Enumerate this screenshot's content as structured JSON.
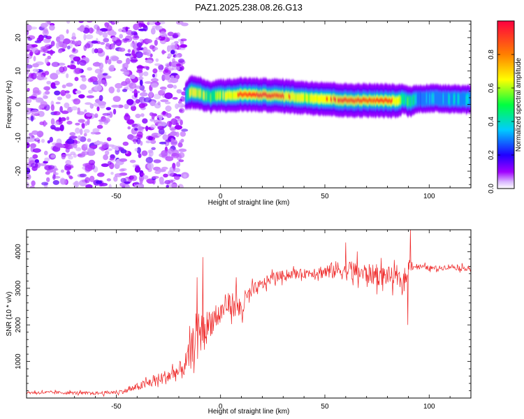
{
  "figure_title": "PAZ1.2025.238.08.26.G13",
  "chart_data": [
    {
      "type": "heatmap",
      "title": "PAZ1.2025.238.08.26.G13",
      "xlabel": "Height of straight line (km)",
      "ylabel": "Frequency (Hz)",
      "xlim": [
        -93,
        120
      ],
      "ylim": [
        -25,
        25
      ],
      "x_ticks": [
        -50,
        0,
        50,
        100
      ],
      "y_ticks": [
        -20,
        -10,
        0,
        10,
        20
      ],
      "x_tick_labels": [
        "-50",
        "0",
        "50",
        "100"
      ],
      "y_tick_labels": [
        "-20",
        "-10",
        "0",
        "10",
        "20"
      ],
      "noise_region_x": [
        -93,
        -17
      ],
      "signal_ridge": {
        "x": [
          -17,
          -14,
          -10,
          -5,
          0,
          5,
          10,
          20,
          30,
          40,
          50,
          60,
          70,
          80,
          85,
          88,
          90,
          95,
          100,
          110,
          120
        ],
        "frequency": [
          2.5,
          3.8,
          3.2,
          2.2,
          2.8,
          2.6,
          3.0,
          2.8,
          2.5,
          2.0,
          1.7,
          1.2,
          1.2,
          1.1,
          1.0,
          1.8,
          0.8,
          1.7,
          1.8,
          1.7,
          1.5
        ],
        "amplitude": [
          0.3,
          0.7,
          0.6,
          0.5,
          0.6,
          0.6,
          0.9,
          1.0,
          0.9,
          0.6,
          0.8,
          1.0,
          0.95,
          1.0,
          0.6,
          0.4,
          0.5,
          0.3,
          0.35,
          0.35,
          0.35
        ]
      },
      "colorbar": {
        "label": "Normalized spectral amplitude",
        "range": [
          0,
          1
        ],
        "ticks": [
          "0.0",
          "0.2",
          "0.4",
          "0.6",
          "0.8"
        ],
        "colors": [
          "#ffffff",
          "#a000ff",
          "#2000ff",
          "#00ccff",
          "#00ff40",
          "#ffff00",
          "#ff8000",
          "#ff0040"
        ]
      }
    },
    {
      "type": "line",
      "xlabel": "Height of straight line (km)",
      "ylabel": "SNR (10 * v/v)",
      "xlim": [
        -93,
        120
      ],
      "ylim": [
        0,
        4600
      ],
      "x_ticks": [
        -50,
        0,
        50,
        100
      ],
      "y_ticks": [
        1000,
        2000,
        3000,
        4000
      ],
      "x_tick_labels": [
        "-50",
        "0",
        "50",
        "100"
      ],
      "y_tick_labels": [
        "1000",
        "2000",
        "3000",
        "4000"
      ],
      "line_color": "#ee2222",
      "series": [
        {
          "name": "SNR",
          "x": [
            -93,
            -80,
            -70,
            -60,
            -50,
            -45,
            -40,
            -35,
            -30,
            -25,
            -22,
            -20,
            -17,
            -14,
            -12,
            -10,
            -8,
            -5,
            -2,
            0,
            2,
            5,
            8,
            10,
            12,
            15,
            20,
            25,
            30,
            35,
            40,
            45,
            50,
            55,
            60,
            65,
            70,
            75,
            80,
            85,
            88,
            90,
            91,
            92,
            95,
            100,
            105,
            110,
            115,
            120
          ],
          "y": [
            150,
            150,
            140,
            130,
            160,
            200,
            300,
            400,
            500,
            600,
            700,
            700,
            900,
            1300,
            1800,
            1800,
            1800,
            2100,
            2200,
            2300,
            2500,
            2600,
            2500,
            2400,
            2700,
            2900,
            3100,
            3300,
            3350,
            3400,
            3400,
            3450,
            3450,
            3500,
            3500,
            3450,
            3400,
            3350,
            3350,
            3250,
            3100,
            3600,
            3800,
            3600,
            3600,
            3550,
            3550,
            3600,
            3550,
            3550
          ],
          "noise": [
            60,
            60,
            60,
            60,
            80,
            100,
            150,
            200,
            250,
            300,
            350,
            380,
            450,
            600,
            800,
            800,
            700,
            600,
            500,
            500,
            450,
            450,
            500,
            550,
            400,
            300,
            250,
            200,
            200,
            180,
            180,
            220,
            300,
            350,
            400,
            420,
            400,
            400,
            380,
            350,
            300,
            250,
            250,
            150,
            100,
            100,
            100,
            100,
            100,
            100
          ]
        }
      ],
      "spikes": [
        {
          "x": -11.2,
          "y": 3300
        },
        {
          "x": -8.5,
          "y": 3850
        },
        {
          "x": 7.5,
          "y": 3300
        },
        {
          "x": 60,
          "y": 4250
        },
        {
          "x": 91,
          "y": 4600
        },
        {
          "x": 89.8,
          "y": 2000
        }
      ]
    }
  ]
}
